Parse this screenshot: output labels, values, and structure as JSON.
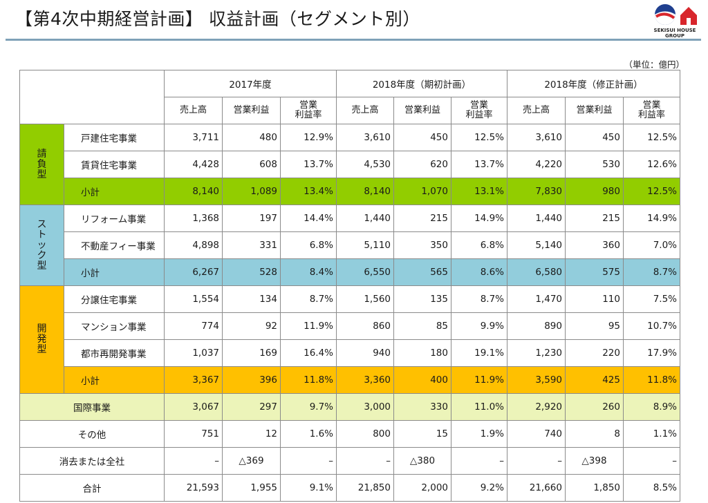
{
  "header": {
    "title": "【第4次中期経営計画】 収益計画（セグメント別）",
    "logo_text": "SEKISUI HOUSE GROUP"
  },
  "unit_note": "（単位：億円）",
  "periods": [
    "2017年度",
    "2018年度（期初計画）",
    "2018年度（修正計画）"
  ],
  "metrics": [
    "売上高",
    "営業利益",
    "営業利益率"
  ],
  "metric_lines": {
    "sales": "売上高",
    "profit": "営業利益",
    "margin_1": "営業",
    "margin_2": "利益率"
  },
  "categories": {
    "contract": [
      "請",
      "負",
      "型"
    ],
    "stock": [
      "ス",
      "ト",
      "ッ",
      "ク",
      "型"
    ],
    "development": [
      "開",
      "発",
      "型"
    ]
  },
  "rows": [
    {
      "label": "戸建住宅事業",
      "v": [
        "3,711",
        "480",
        "12.9%",
        "3,610",
        "450",
        "12.5%",
        "3,610",
        "450",
        "12.5%"
      ]
    },
    {
      "label": "賃貸住宅事業",
      "v": [
        "4,428",
        "608",
        "13.7%",
        "4,530",
        "620",
        "13.7%",
        "4,220",
        "530",
        "12.6%"
      ]
    },
    {
      "label": "小計",
      "v": [
        "8,140",
        "1,089",
        "13.4%",
        "8,140",
        "1,070",
        "13.1%",
        "7,830",
        "980",
        "12.5%"
      ]
    },
    {
      "label": "リフォーム事業",
      "v": [
        "1,368",
        "197",
        "14.4%",
        "1,440",
        "215",
        "14.9%",
        "1,440",
        "215",
        "14.9%"
      ]
    },
    {
      "label": "不動産フィー事業",
      "v": [
        "4,898",
        "331",
        "6.8%",
        "5,110",
        "350",
        "6.8%",
        "5,140",
        "360",
        "7.0%"
      ]
    },
    {
      "label": "小計",
      "v": [
        "6,267",
        "528",
        "8.4%",
        "6,550",
        "565",
        "8.6%",
        "6,580",
        "575",
        "8.7%"
      ]
    },
    {
      "label": "分譲住宅事業",
      "v": [
        "1,554",
        "134",
        "8.7%",
        "1,560",
        "135",
        "8.7%",
        "1,470",
        "110",
        "7.5%"
      ]
    },
    {
      "label": "マンション事業",
      "v": [
        "774",
        "92",
        "11.9%",
        "860",
        "85",
        "9.9%",
        "890",
        "95",
        "10.7%"
      ]
    },
    {
      "label": "都市再開発事業",
      "v": [
        "1,037",
        "169",
        "16.4%",
        "940",
        "180",
        "19.1%",
        "1,230",
        "220",
        "17.9%"
      ]
    },
    {
      "label": "小計",
      "v": [
        "3,367",
        "396",
        "11.8%",
        "3,360",
        "400",
        "11.9%",
        "3,590",
        "425",
        "11.8%"
      ]
    },
    {
      "label": "国際事業",
      "v": [
        "3,067",
        "297",
        "9.7%",
        "3,000",
        "330",
        "11.0%",
        "2,920",
        "260",
        "8.9%"
      ]
    },
    {
      "label": "その他",
      "v": [
        "751",
        "12",
        "1.6%",
        "800",
        "15",
        "1.9%",
        "740",
        "8",
        "1.1%"
      ]
    },
    {
      "label": "消去または全社",
      "v": [
        "–",
        "△369",
        "–",
        "–",
        "△380",
        "–",
        "–",
        "△398",
        "–"
      ]
    },
    {
      "label": "合計",
      "v": [
        "21,593",
        "1,955",
        "9.1%",
        "21,850",
        "2,000",
        "9.2%",
        "21,660",
        "1,850",
        "8.5%"
      ]
    }
  ],
  "colors": {
    "contract": "#92cd00",
    "stock": "#92cddc",
    "development": "#ffc000",
    "international": "#ecf4b9",
    "title_rule": "#7fa1b8"
  }
}
